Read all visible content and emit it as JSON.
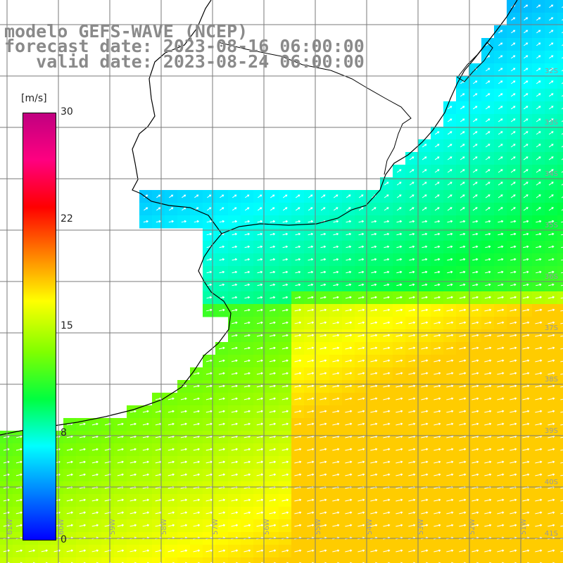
{
  "title": {
    "model": "modelo GEFS-WAVE (NCEP)",
    "forecast": "forecast date: 2023-08-16 06:00:00",
    "valid": "   valid date: 2023-08-24 06:00:00"
  },
  "colorbar": {
    "unit": "[m/s]",
    "ticks": [
      "30",
      "22",
      "15",
      "8",
      "0"
    ],
    "range": [
      0,
      30
    ],
    "colors": [
      "#0000ff",
      "#0080ff",
      "#00ffff",
      "#00ff40",
      "#80ff00",
      "#ffff00",
      "#ff8000",
      "#ff0000",
      "#ff0080",
      "#c00080"
    ]
  },
  "grid": {
    "lon_labels": [
      "61W",
      "60W",
      "59W",
      "58W",
      "57W",
      "56W",
      "55W",
      "54W",
      "53W",
      "52W",
      "51W"
    ],
    "lat_labels": [
      "32S",
      "33S",
      "34S",
      "35S",
      "36S",
      "37S",
      "38S",
      "39S",
      "40S",
      "41S"
    ]
  }
}
